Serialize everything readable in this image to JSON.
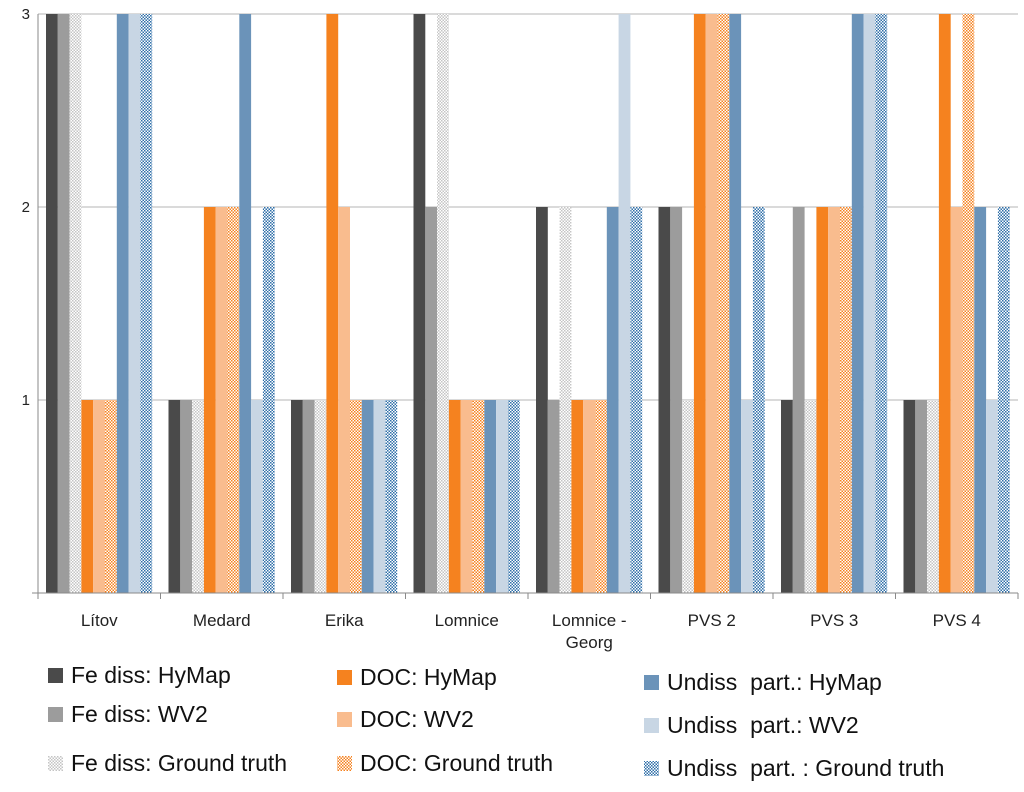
{
  "chart_data": {
    "type": "bar",
    "title": "",
    "xlabel": "",
    "ylabel": "",
    "ylim": [
      0,
      3
    ],
    "yticks": [
      1,
      2,
      3
    ],
    "grid": true,
    "legend_position": "bottom",
    "categories": [
      [
        "Lítov"
      ],
      [
        "Medard"
      ],
      [
        "Erika"
      ],
      [
        "Lomnice"
      ],
      [
        "Lomnice -",
        "Georg"
      ],
      [
        "PVS 2"
      ],
      [
        "PVS 3"
      ],
      [
        "PVS 4"
      ]
    ],
    "series": [
      {
        "name": "Fe diss: HyMap",
        "color": "#4a4a4a",
        "pattern": "solid",
        "values": [
          3,
          1,
          1,
          3,
          2,
          2,
          1,
          1
        ]
      },
      {
        "name": "Fe diss: WV2",
        "color": "#9c9c9c",
        "pattern": "solid",
        "values": [
          3,
          1,
          1,
          2,
          1,
          2,
          2,
          1
        ]
      },
      {
        "name": "Fe diss: Ground truth",
        "color": "#c4c4c4",
        "pattern": "checker",
        "values": [
          3,
          1,
          1,
          3,
          2,
          1,
          1,
          1
        ]
      },
      {
        "name": "DOC: HyMap",
        "color": "#f5821f",
        "pattern": "solid",
        "values": [
          1,
          2,
          3,
          1,
          1,
          3,
          2,
          3
        ]
      },
      {
        "name": "DOC: WV2",
        "color": "#f9bc8e",
        "pattern": "solid",
        "values": [
          1,
          2,
          2,
          1,
          1,
          3,
          2,
          2
        ]
      },
      {
        "name": "DOC: Ground truth",
        "color": "#f5821f",
        "pattern": "checker",
        "values": [
          1,
          2,
          1,
          1,
          1,
          3,
          2,
          3
        ]
      },
      {
        "name": "Undiss  part.: HyMap",
        "color": "#6b93b9",
        "pattern": "solid",
        "values": [
          3,
          3,
          1,
          1,
          2,
          3,
          3,
          2
        ]
      },
      {
        "name": "Undiss  part.: WV2",
        "color": "#c8d6e4",
        "pattern": "solid",
        "values": [
          3,
          1,
          1,
          1,
          3,
          1,
          3,
          1
        ]
      },
      {
        "name": "Undiss  part. : Ground truth",
        "color": "#2f6fa8",
        "pattern": "checker",
        "values": [
          3,
          2,
          1,
          1,
          2,
          2,
          3,
          2
        ]
      }
    ]
  }
}
